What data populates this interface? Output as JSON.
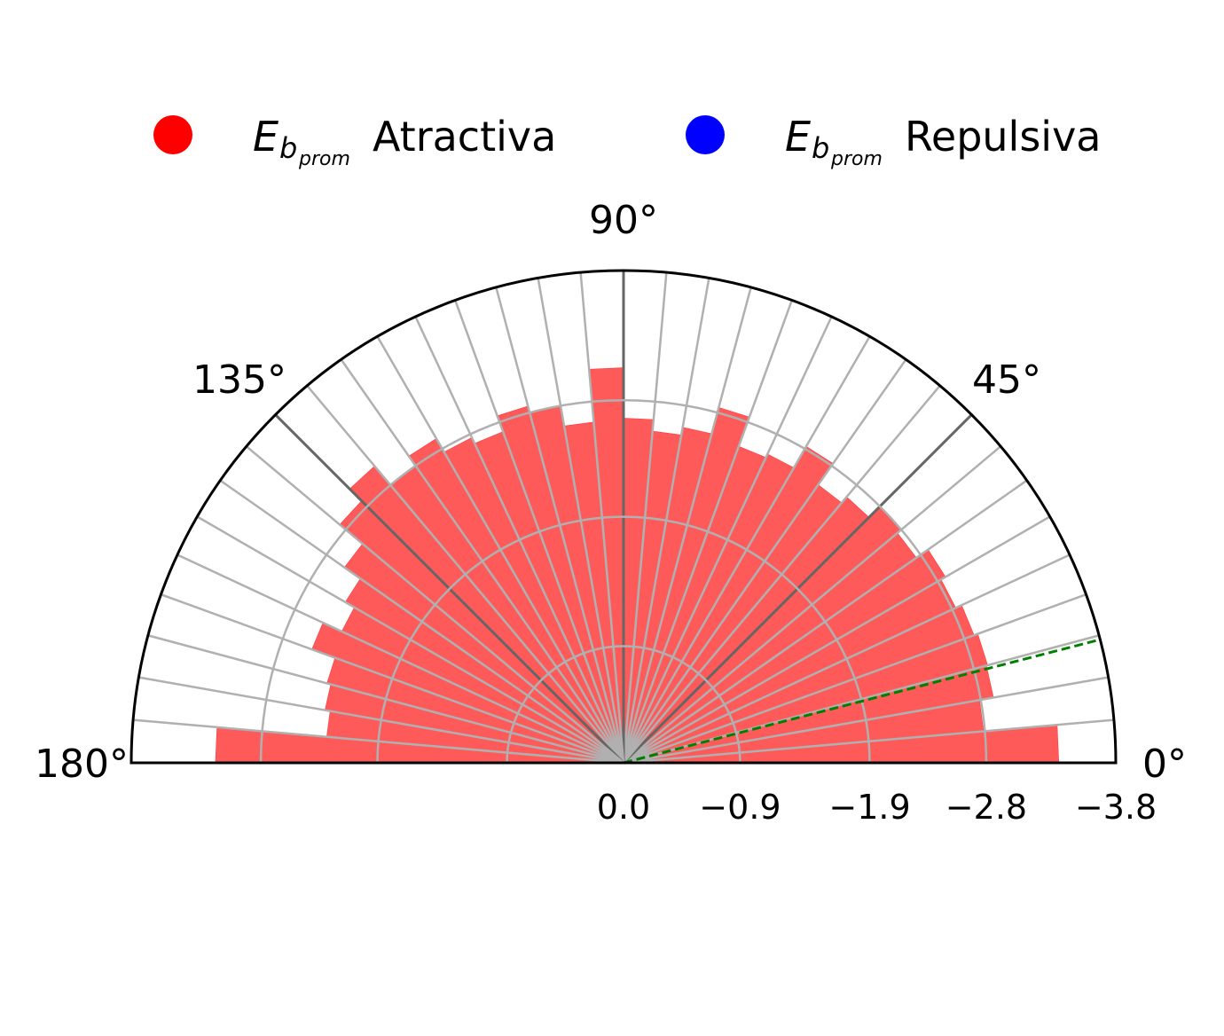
{
  "chart_data": {
    "type": "bar",
    "subtype": "polar-half",
    "theta_range_deg": [
      0,
      180
    ],
    "r_range": [
      0,
      3.8
    ],
    "r_ticks": [
      0.0,
      0.9,
      1.9,
      2.8,
      3.8
    ],
    "r_tick_labels": [
      "0.0",
      "−0.9",
      "−1.9",
      "−2.8",
      "−3.8"
    ],
    "theta_ticks_deg": [
      0,
      45,
      90,
      135,
      180
    ],
    "theta_tick_labels": [
      "0°",
      "45°",
      "90°",
      "135°",
      "180°"
    ],
    "grid": true,
    "legend": {
      "placement": "top",
      "entries": [
        {
          "symbol": "E",
          "sub": "b",
          "subsub": "prom",
          "label": "Atractiva",
          "color": "#ff0000"
        },
        {
          "symbol": "E",
          "sub": "b",
          "subsub": "prom",
          "label": "Repulsiva",
          "color": "#0000ff"
        }
      ]
    },
    "bar_color": "#ff5a5a",
    "reference_line": {
      "angle_deg": 14.5,
      "color": "#008000",
      "style": "dashed"
    },
    "bin_width_deg": 5,
    "series": [
      {
        "name": "Atractiva",
        "theta_deg": [
          2.5,
          7.5,
          12.5,
          17.5,
          22.5,
          27.5,
          32.5,
          37.5,
          42.5,
          47.5,
          52.5,
          57.5,
          62.5,
          67.5,
          72.5,
          77.5,
          82.5,
          87.5,
          92.5,
          97.5,
          102.5,
          107.5,
          112.5,
          117.5,
          122.5,
          127.5,
          132.5,
          137.5,
          142.5,
          147.5,
          152.5,
          157.5,
          162.5,
          167.5,
          172.5,
          177.5
        ],
        "values": [
          3.36,
          2.79,
          2.9,
          2.91,
          2.88,
          2.83,
          2.87,
          2.76,
          2.8,
          2.68,
          2.62,
          2.82,
          2.63,
          2.6,
          2.84,
          2.63,
          2.57,
          2.66,
          3.05,
          2.64,
          2.8,
          2.85,
          2.72,
          2.77,
          2.89,
          2.8,
          2.99,
          2.86,
          2.63,
          2.48,
          2.4,
          2.56,
          2.37,
          2.34,
          2.3,
          3.15
        ]
      }
    ]
  }
}
